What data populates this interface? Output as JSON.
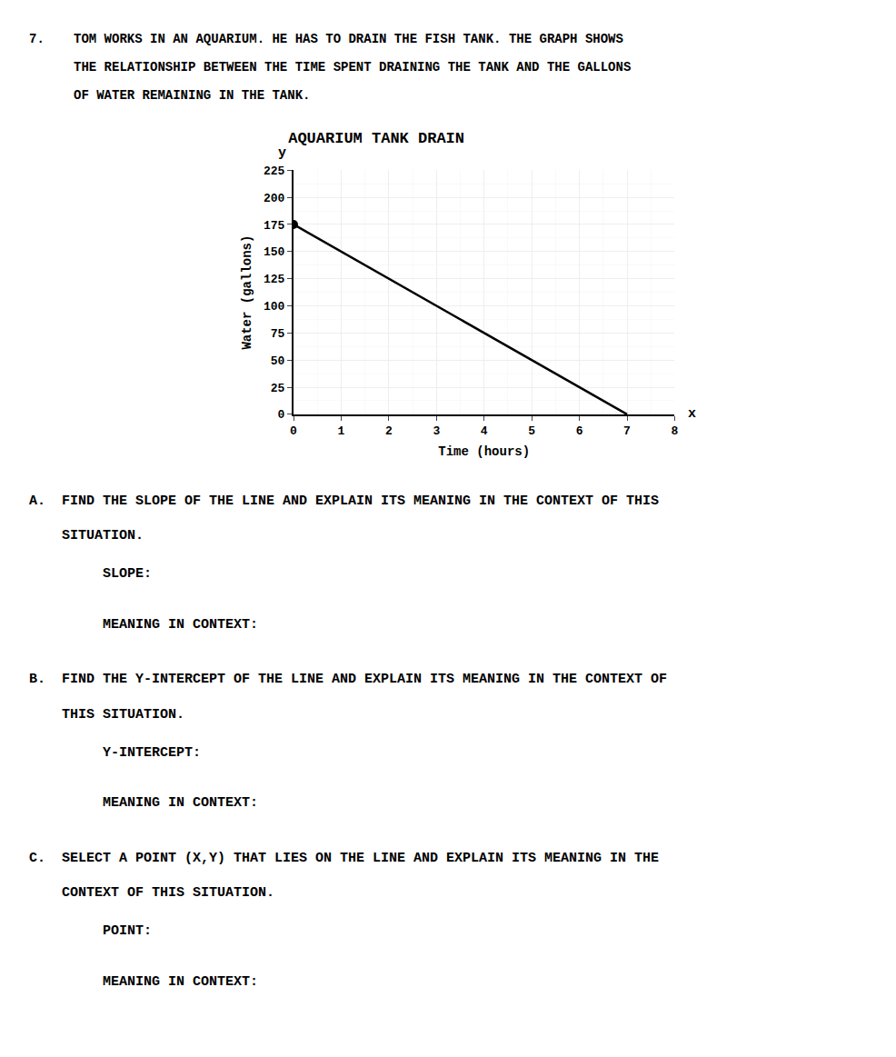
{
  "chart_data": {
    "type": "line",
    "title": "AQUARIUM TANK DRAIN",
    "xlabel": "Time (hours)",
    "ylabel": "Water (gallons)",
    "series": [
      {
        "type": "line",
        "color": "#000000",
        "x": [
          0,
          7
        ],
        "values": [
          175,
          0
        ]
      },
      {
        "type": "scatter",
        "marker": "circle",
        "color": "#000000",
        "x": [
          0
        ],
        "values": [
          175
        ]
      }
    ],
    "xlim": [
      0,
      8
    ],
    "ylim": [
      0,
      225
    ],
    "xticks": [
      0,
      1,
      2,
      3,
      4,
      5,
      6,
      7,
      8
    ],
    "yticks": [
      0,
      25,
      50,
      75,
      100,
      125,
      150,
      175,
      200,
      225
    ],
    "grid": true,
    "annotations": [
      "7.",
      "TOM WORKS IN AN AQUARIUM. HE HAS TO DRAIN THE FISH TANK. THE GRAPH SHOWS",
      "THE RELATIONSHIP BETWEEN THE TIME SPENT DRAINING THE TANK AND THE GALLONS",
      "OF WATER REMAINING IN THE TANK.",
      "A.  FIND THE SLOPE OF THE LINE AND EXPLAIN ITS MEANING IN THE CONTEXT OF THIS",
      "    SITUATION.",
      "         SLOPE:",
      "         MEANING IN CONTEXT:",
      "B.  FIND THE Y-INTERCEPT OF THE LINE AND EXPLAIN ITS MEANING IN THE CONTEXT OF",
      "    THIS SITUATION.",
      "         Y-INTERCEPT:",
      "         MEANING IN CONTEXT:",
      "C.  SELECT A POINT (X,Y) THAT LIES ON THE LINE AND EXPLAIN ITS MEANING IN THE",
      "    CONTEXT OF THIS SITUATION.",
      "         POINT:",
      "         MEANING IN CONTEXT:",
      "y",
      "x"
    ]
  }
}
